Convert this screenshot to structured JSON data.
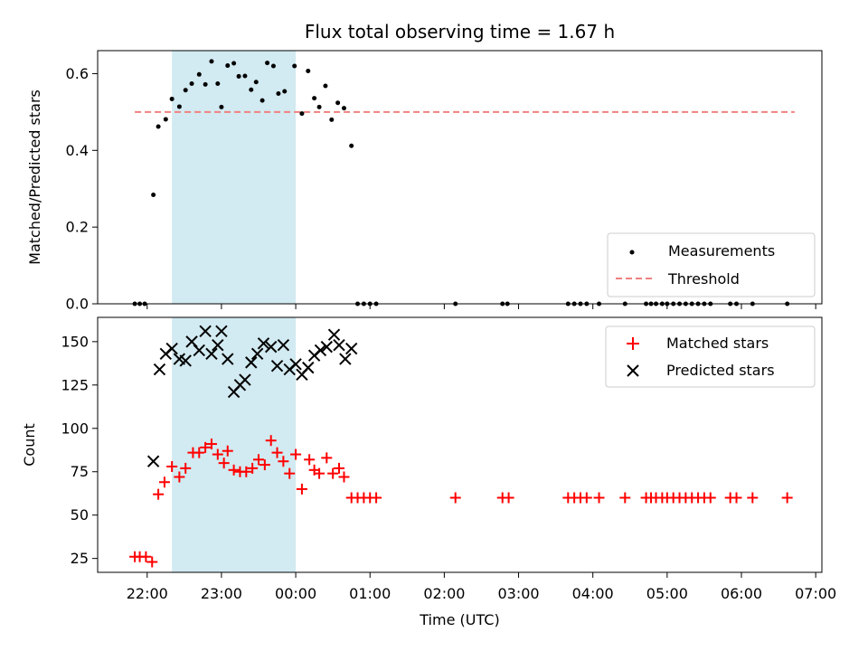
{
  "chart_data": [
    {
      "type": "scatter",
      "title": "Flux total observing time = 1.67 h",
      "xlabel": "",
      "ylabel": "Matched/Predicted stars",
      "x_unit": "time of day (UTC)",
      "xlim": [
        "21:20",
        "07:05"
      ],
      "ylim": [
        0,
        0.66
      ],
      "yticks": [
        0.0,
        0.2,
        0.4,
        0.6
      ],
      "ytick_labels": [
        "0.0",
        "0.2",
        "0.4",
        "0.6"
      ],
      "xticks": [
        "22:00",
        "23:00",
        "00:00",
        "01:00",
        "02:00",
        "03:00",
        "04:00",
        "05:00",
        "06:00",
        "07:00"
      ],
      "grid": false,
      "legend_position": "lower-right",
      "highlight_span": {
        "from": "22:20",
        "to": "00:00",
        "color": "#add8e6"
      },
      "threshold": {
        "name": "Threshold",
        "y": 0.5,
        "from": "21:50",
        "to": "06:43",
        "color": "#f08080",
        "style": "dashed"
      },
      "series": [
        {
          "name": "Measurements",
          "color": "#000000",
          "marker": "dot",
          "points": [
            [
              "21:50",
              0.0
            ],
            [
              "21:54",
              0.0
            ],
            [
              "21:58",
              0.0
            ],
            [
              "22:05",
              0.284
            ],
            [
              "22:09",
              0.462
            ],
            [
              "22:15",
              0.481
            ],
            [
              "22:20",
              0.534
            ],
            [
              "22:26",
              0.514
            ],
            [
              "22:31",
              0.557
            ],
            [
              "22:36",
              0.574
            ],
            [
              "22:42",
              0.598
            ],
            [
              "22:47",
              0.572
            ],
            [
              "22:52",
              0.632
            ],
            [
              "22:57",
              0.574
            ],
            [
              "23:00",
              0.513
            ],
            [
              "23:05",
              0.621
            ],
            [
              "23:10",
              0.627
            ],
            [
              "23:14",
              0.593
            ],
            [
              "23:19",
              0.594
            ],
            [
              "23:24",
              0.558
            ],
            [
              "23:28",
              0.578
            ],
            [
              "23:33",
              0.53
            ],
            [
              "23:37",
              0.628
            ],
            [
              "23:42",
              0.62
            ],
            [
              "23:46",
              0.548
            ],
            [
              "23:51",
              0.554
            ],
            [
              "23:59",
              0.62
            ],
            [
              "00:05",
              0.496
            ],
            [
              "00:10",
              0.607
            ],
            [
              "00:15",
              0.536
            ],
            [
              "00:19",
              0.513
            ],
            [
              "00:24",
              0.568
            ],
            [
              "00:29",
              0.48
            ],
            [
              "00:34",
              0.524
            ],
            [
              "00:39",
              0.51
            ],
            [
              "00:45",
              0.412
            ],
            [
              "00:50",
              0.0
            ],
            [
              "00:55",
              0.0
            ],
            [
              "01:00",
              0.0
            ],
            [
              "01:05",
              0.0
            ],
            [
              "02:09",
              0.0
            ],
            [
              "02:47",
              0.0
            ],
            [
              "02:51",
              0.0
            ],
            [
              "03:40",
              0.0
            ],
            [
              "03:45",
              0.0
            ],
            [
              "03:50",
              0.0
            ],
            [
              "03:55",
              0.0
            ],
            [
              "04:05",
              0.0
            ],
            [
              "04:26",
              0.0
            ],
            [
              "04:43",
              0.0
            ],
            [
              "04:47",
              0.0
            ],
            [
              "04:51",
              0.0
            ],
            [
              "04:56",
              0.0
            ],
            [
              "05:00",
              0.0
            ],
            [
              "05:05",
              0.0
            ],
            [
              "05:10",
              0.0
            ],
            [
              "05:15",
              0.0
            ],
            [
              "05:20",
              0.0
            ],
            [
              "05:25",
              0.0
            ],
            [
              "05:30",
              0.0
            ],
            [
              "05:35",
              0.0
            ],
            [
              "05:51",
              0.0
            ],
            [
              "05:56",
              0.0
            ],
            [
              "06:09",
              0.0
            ],
            [
              "06:37",
              0.0
            ]
          ]
        }
      ]
    },
    {
      "type": "scatter",
      "title": "",
      "xlabel": "Time (UTC)",
      "ylabel": "Count",
      "x_unit": "time of day (UTC)",
      "xlim": [
        "21:20",
        "07:05"
      ],
      "ylim": [
        17,
        164
      ],
      "yticks": [
        25,
        50,
        75,
        100,
        125,
        150
      ],
      "ytick_labels": [
        "25",
        "50",
        "75",
        "100",
        "125",
        "150"
      ],
      "xticks": [
        "22:00",
        "23:00",
        "00:00",
        "01:00",
        "02:00",
        "03:00",
        "04:00",
        "05:00",
        "06:00",
        "07:00"
      ],
      "xtick_labels": [
        "22:00",
        "23:00",
        "00:00",
        "01:00",
        "02:00",
        "03:00",
        "04:00",
        "05:00",
        "06:00",
        "07:00"
      ],
      "grid": false,
      "legend_position": "top-right",
      "highlight_span": {
        "from": "22:20",
        "to": "00:00",
        "color": "#add8e6"
      },
      "series": [
        {
          "name": "Matched stars",
          "color": "#ff0000",
          "marker": "plus",
          "points": [
            [
              "21:50",
              26
            ],
            [
              "21:54",
              26
            ],
            [
              "21:59",
              26
            ],
            [
              "22:04",
              23
            ],
            [
              "22:09",
              62
            ],
            [
              "22:14",
              69
            ],
            [
              "22:20",
              78
            ],
            [
              "22:26",
              72
            ],
            [
              "22:31",
              77
            ],
            [
              "22:37",
              86
            ],
            [
              "22:42",
              86
            ],
            [
              "22:47",
              89
            ],
            [
              "22:52",
              91
            ],
            [
              "22:57",
              85
            ],
            [
              "23:02",
              80
            ],
            [
              "23:05",
              87
            ],
            [
              "23:10",
              76
            ],
            [
              "23:15",
              75
            ],
            [
              "23:20",
              75
            ],
            [
              "23:25",
              77
            ],
            [
              "23:30",
              82
            ],
            [
              "23:35",
              79
            ],
            [
              "23:40",
              93
            ],
            [
              "23:45",
              86
            ],
            [
              "23:50",
              81
            ],
            [
              "23:55",
              74
            ],
            [
              "24:00",
              85
            ],
            [
              "24:05",
              65
            ],
            [
              "24:11",
              82
            ],
            [
              "24:15",
              76
            ],
            [
              "24:19",
              74
            ],
            [
              "24:25",
              83
            ],
            [
              "24:30",
              74
            ],
            [
              "24:35",
              77
            ],
            [
              "24:39",
              72
            ],
            [
              "24:45",
              60
            ],
            [
              "24:50",
              60
            ],
            [
              "24:55",
              60
            ],
            [
              "25:00",
              60
            ],
            [
              "25:05",
              60
            ],
            [
              "26:09",
              60
            ],
            [
              "26:47",
              60
            ],
            [
              "26:52",
              60
            ],
            [
              "27:40",
              60
            ],
            [
              "27:45",
              60
            ],
            [
              "27:50",
              60
            ],
            [
              "27:55",
              60
            ],
            [
              "28:05",
              60
            ],
            [
              "28:26",
              60
            ],
            [
              "28:43",
              60
            ],
            [
              "28:47",
              60
            ],
            [
              "28:51",
              60
            ],
            [
              "28:56",
              60
            ],
            [
              "29:00",
              60
            ],
            [
              "29:05",
              60
            ],
            [
              "29:10",
              60
            ],
            [
              "29:15",
              60
            ],
            [
              "29:20",
              60
            ],
            [
              "29:25",
              60
            ],
            [
              "29:30",
              60
            ],
            [
              "29:35",
              60
            ],
            [
              "29:51",
              60
            ],
            [
              "29:56",
              60
            ],
            [
              "30:09",
              60
            ],
            [
              "30:37",
              60
            ]
          ]
        },
        {
          "name": "Predicted stars",
          "color": "#000000",
          "marker": "x",
          "points": [
            [
              "22:05",
              81
            ],
            [
              "22:10",
              134
            ],
            [
              "22:15",
              143
            ],
            [
              "22:20",
              146
            ],
            [
              "22:26",
              140
            ],
            [
              "22:31",
              139
            ],
            [
              "22:36",
              150
            ],
            [
              "22:42",
              145
            ],
            [
              "22:47",
              156
            ],
            [
              "22:52",
              143
            ],
            [
              "22:57",
              148
            ],
            [
              "23:00",
              156
            ],
            [
              "23:05",
              140
            ],
            [
              "23:10",
              121
            ],
            [
              "23:15",
              125
            ],
            [
              "23:19",
              128
            ],
            [
              "23:24",
              138
            ],
            [
              "23:29",
              143
            ],
            [
              "23:34",
              149
            ],
            [
              "23:40",
              147
            ],
            [
              "23:45",
              136
            ],
            [
              "23:50",
              148
            ],
            [
              "23:55",
              134
            ],
            [
              "24:00",
              137
            ],
            [
              "24:05",
              131
            ],
            [
              "24:10",
              135
            ],
            [
              "24:15",
              142
            ],
            [
              "24:20",
              145
            ],
            [
              "24:25",
              147
            ],
            [
              "24:31",
              154
            ],
            [
              "24:35",
              148
            ],
            [
              "24:40",
              140
            ],
            [
              "24:45",
              146
            ]
          ]
        }
      ]
    }
  ]
}
